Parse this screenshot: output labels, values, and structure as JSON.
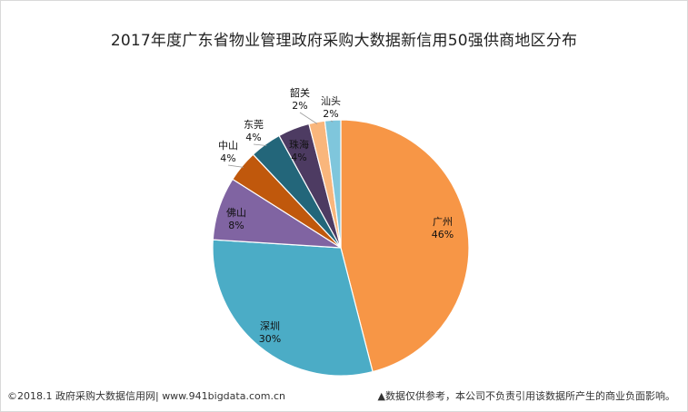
{
  "chart_data": {
    "type": "pie",
    "title": "2017年度广东省物业管理政府采购大数据新信用50强供商地区分布",
    "slices": [
      {
        "label": "广州",
        "value": 46,
        "value_label": "46%",
        "color": "#f79646"
      },
      {
        "label": "深圳",
        "value": 30,
        "value_label": "30%",
        "color": "#4bacc6"
      },
      {
        "label": "佛山",
        "value": 8,
        "value_label": "8%",
        "color": "#8064a2"
      },
      {
        "label": "中山",
        "value": 4,
        "value_label": "4%",
        "color": "#c0580c"
      },
      {
        "label": "东莞",
        "value": 4,
        "value_label": "4%",
        "color": "#23667a"
      },
      {
        "label": "珠海",
        "value": 4,
        "value_label": "4%",
        "color": "#4d3b62"
      },
      {
        "label": "韶关",
        "value": 2,
        "value_label": "2%",
        "color": "#f9b67c"
      },
      {
        "label": "汕头",
        "value": 2,
        "value_label": "2%",
        "color": "#7fc6dc"
      }
    ]
  },
  "footer": {
    "left": "©2018.1 政府采购大数据信用网| www.941bigdata.com.cn",
    "right": "▲数据仅供参考，本公司不负责引用该数据所产生的商业负面影响。"
  }
}
